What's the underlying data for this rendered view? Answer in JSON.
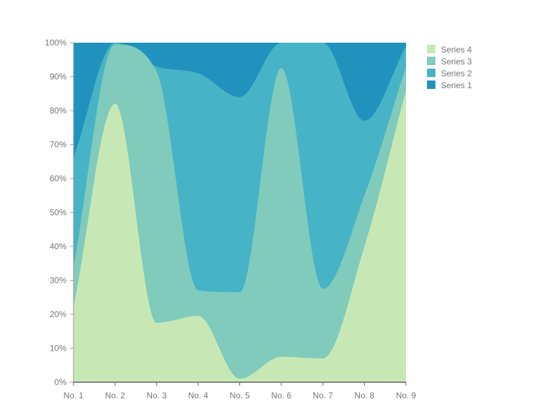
{
  "chart_data": {
    "type": "area",
    "stacked": "percent",
    "title": "",
    "xlabel": "",
    "ylabel": "",
    "categories": [
      "No. 1",
      "No. 2",
      "No. 3",
      "No. 4",
      "No. 5",
      "No. 6",
      "No. 7",
      "No. 8",
      "No. 9"
    ],
    "y_ticks": [
      "0%",
      "10%",
      "20%",
      "30%",
      "40%",
      "50%",
      "60%",
      "70%",
      "80%",
      "90%",
      "100%"
    ],
    "ylim": [
      0,
      100
    ],
    "grid": false,
    "legend_position": "top-right",
    "series": [
      {
        "name": "Series 4",
        "color": "#c7e8b5",
        "values": [
          22,
          82,
          17.5,
          19.5,
          1,
          7.5,
          7,
          40,
          86
        ]
      },
      {
        "name": "Series 3",
        "color": "#80cbbc",
        "values": [
          12,
          17.5,
          74,
          7.5,
          25.5,
          85,
          20.5,
          15,
          7
        ]
      },
      {
        "name": "Series 2",
        "color": "#47b3c6",
        "values": [
          32,
          0.5,
          1.5,
          64,
          57.5,
          7.5,
          72.5,
          22,
          6
        ]
      },
      {
        "name": "Series 1",
        "color": "#2191be",
        "values": [
          34,
          0,
          7,
          9,
          16,
          0,
          0,
          23,
          1
        ]
      }
    ]
  }
}
